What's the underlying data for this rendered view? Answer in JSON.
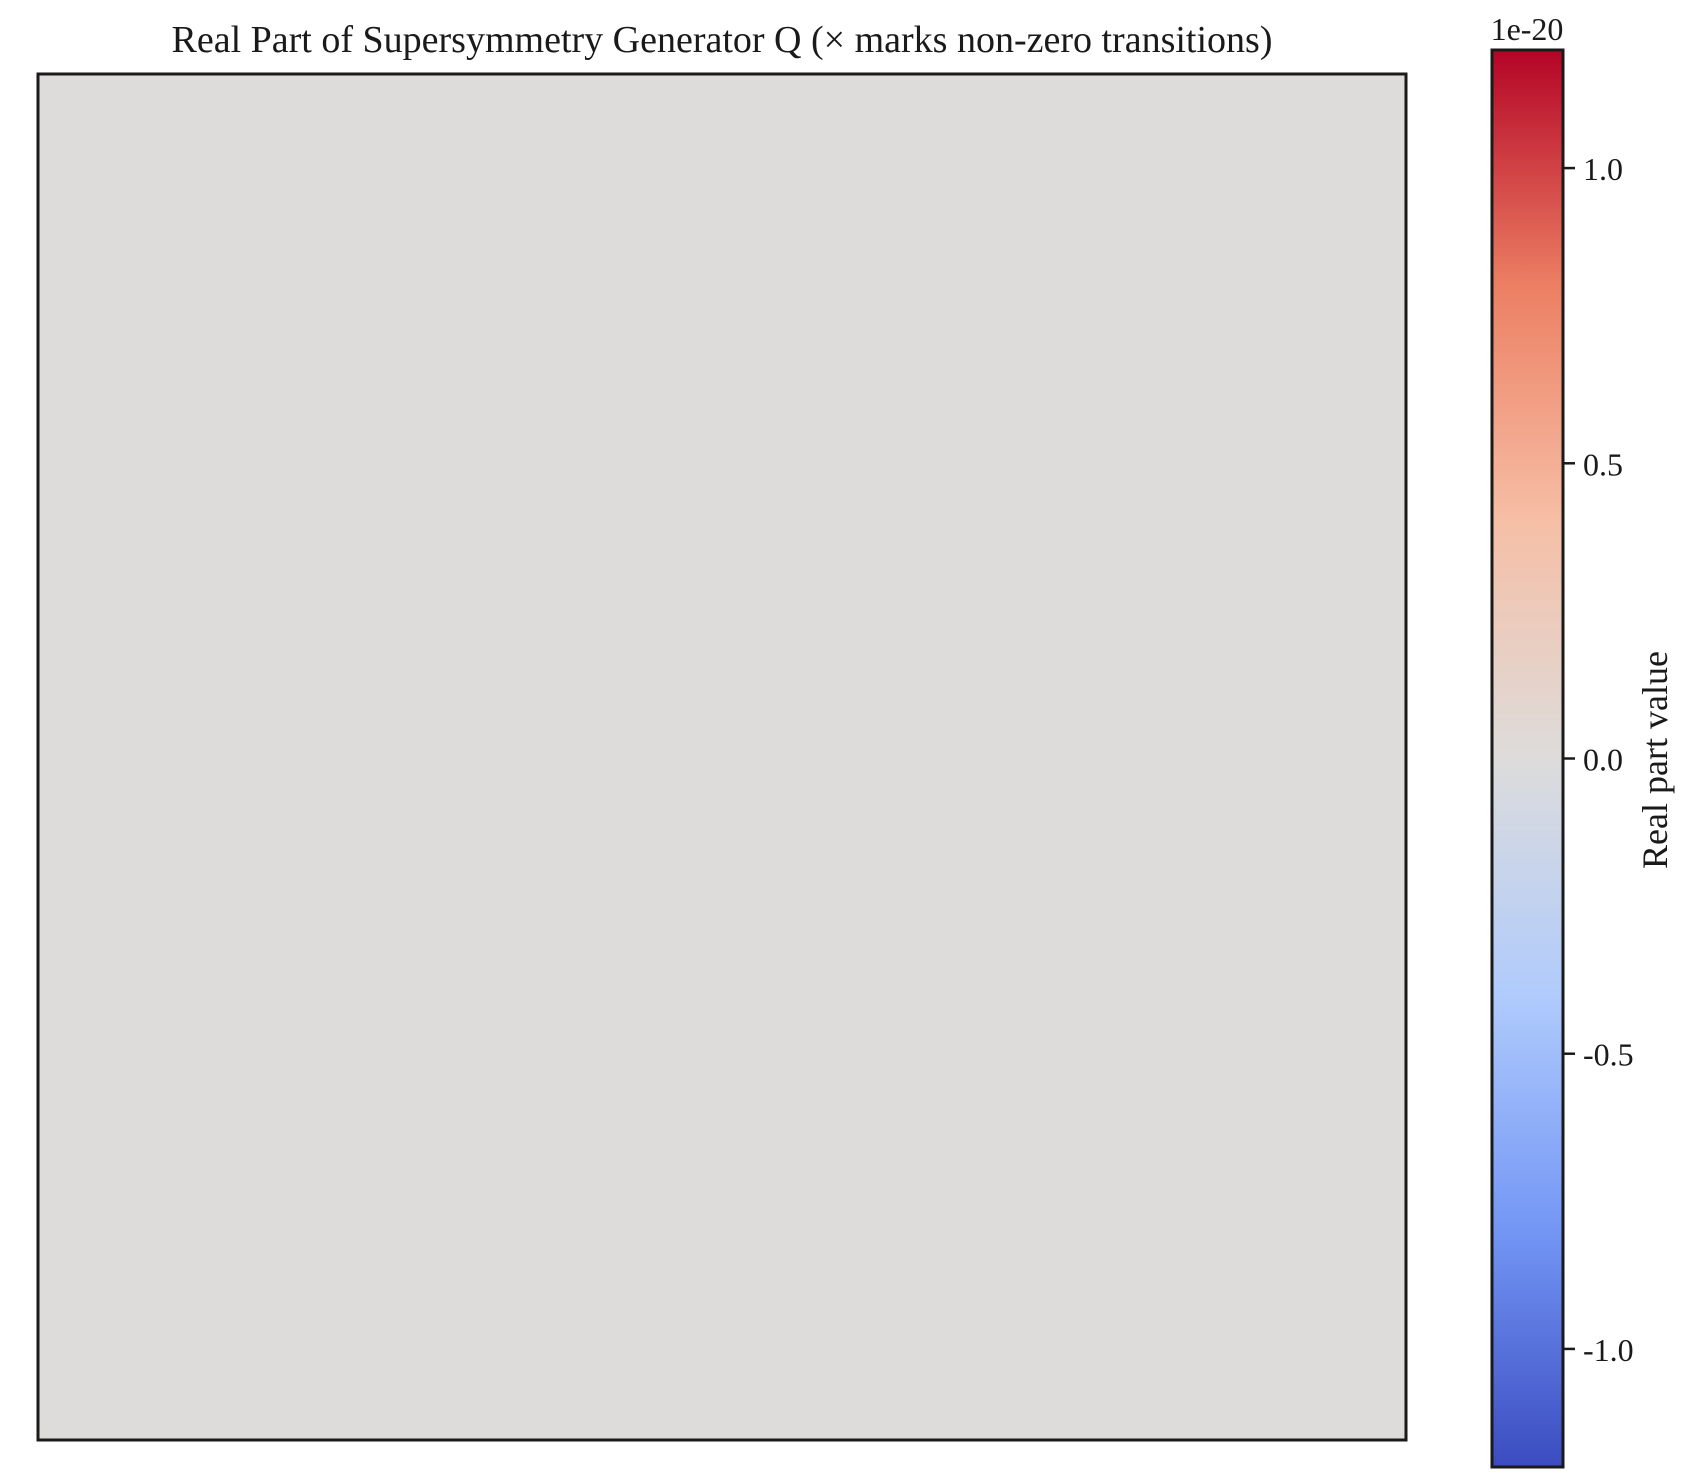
{
  "chart_data": {
    "type": "heatmap",
    "title": "Real Part of Supersymmetry Generator Q (× marks non-zero transitions)",
    "values_description_colors": {
      "uniform_cell_color": "#dddcdb"
    },
    "xlabel": "",
    "ylabel": "",
    "grid": false,
    "colorbar": {
      "label": "Real part value",
      "offset_text": "1e-20",
      "range": [
        -1.2,
        1.2
      ],
      "ticks": [
        1.0,
        0.5,
        0.0,
        -0.5,
        -1.0
      ],
      "tick_labels": [
        "1.0",
        "0.5",
        "0.0",
        "-0.5",
        "-1.0"
      ],
      "colormap": "coolwarm",
      "colormap_stops": [
        "#3b4cc0",
        "#7396f5",
        "#b0cbfc",
        "#dddcdb",
        "#f6bfa6",
        "#ec7f63",
        "#b40426"
      ]
    }
  }
}
